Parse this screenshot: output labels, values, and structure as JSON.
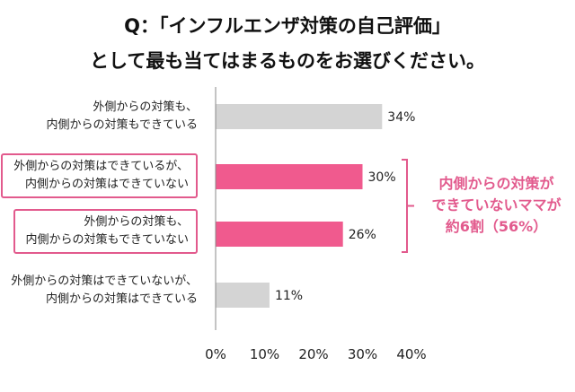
{
  "title": {
    "line1": "Q：「インフルエンザ対策の自己評価」",
    "line2": "として最も当てはまるものをお選びください。"
  },
  "colors": {
    "highlight": "#f05a8e",
    "neutral": "#d4d4d4",
    "accent_text": "#e25a8d"
  },
  "chart_data": {
    "type": "bar",
    "orientation": "horizontal",
    "categories": [
      [
        "外側からの対策も、",
        "内側からの対策もできている"
      ],
      [
        "外側からの対策はできているが、",
        "内側からの対策はできていない"
      ],
      [
        "外側からの対策も、",
        "内側からの対策もできていない"
      ],
      [
        "外側からの対策はできていないが、",
        "内側からの対策はできている"
      ]
    ],
    "values": [
      34,
      30,
      26,
      11
    ],
    "value_labels": [
      "34%",
      "30%",
      "26%",
      "11%"
    ],
    "highlighted": [
      false,
      true,
      true,
      false
    ],
    "xlim": [
      0,
      40
    ],
    "xticks": [
      "0%",
      "10%",
      "20%",
      "30%",
      "40%"
    ],
    "grid": false,
    "annotation": {
      "lines": [
        "内側からの対策が",
        "できていないママが",
        "約6割（56%）"
      ],
      "brackets": [
        1,
        2
      ]
    }
  }
}
